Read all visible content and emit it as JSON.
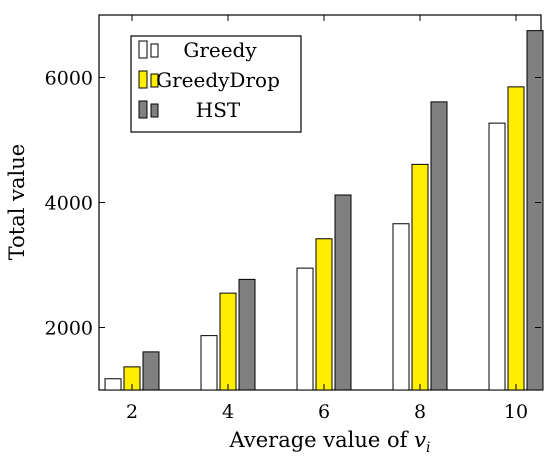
{
  "chart_data": {
    "type": "bar",
    "categories": [
      "2",
      "4",
      "6",
      "8",
      "10"
    ],
    "series": [
      {
        "name": "Greedy",
        "color": "#ffffff",
        "values": [
          1180,
          1870,
          2950,
          3660,
          5270
        ]
      },
      {
        "name": "GreedyDrop",
        "color": "#ffee00",
        "values": [
          1370,
          2550,
          3420,
          4610,
          5850
        ]
      },
      {
        "name": "HST",
        "color": "#808080",
        "values": [
          1610,
          2770,
          4120,
          5610,
          6750
        ]
      }
    ],
    "title": "",
    "xlabel_text": "Average value of ",
    "xlabel_var": "v",
    "xlabel_sub": "i",
    "ylabel": "Total value",
    "ylim": [
      1000,
      7000
    ],
    "yticks": [
      2000,
      4000,
      6000
    ],
    "legend_position": "top-left",
    "grid": false
  }
}
